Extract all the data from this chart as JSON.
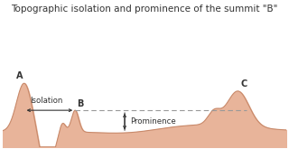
{
  "title": "Topographic isolation and prominence of the summit \"B\"",
  "title_fontsize": 7.5,
  "bg_color": "#ffffff",
  "terrain_fill": "#e8b49a",
  "terrain_edge": "#c8896a",
  "terrain_edge_width": 0.8,
  "text_color": "#333333",
  "dashed_line_color": "#999999",
  "arrow_color": "#333333",
  "label_A": "A",
  "label_B": "B",
  "label_C": "C",
  "label_isolation": "Isolation",
  "label_prominence": "Prominence",
  "figsize": [
    3.2,
    1.65
  ],
  "dpi": 100,
  "xmin": 0,
  "xmax": 10,
  "ymin": 0,
  "ymax": 2.2
}
